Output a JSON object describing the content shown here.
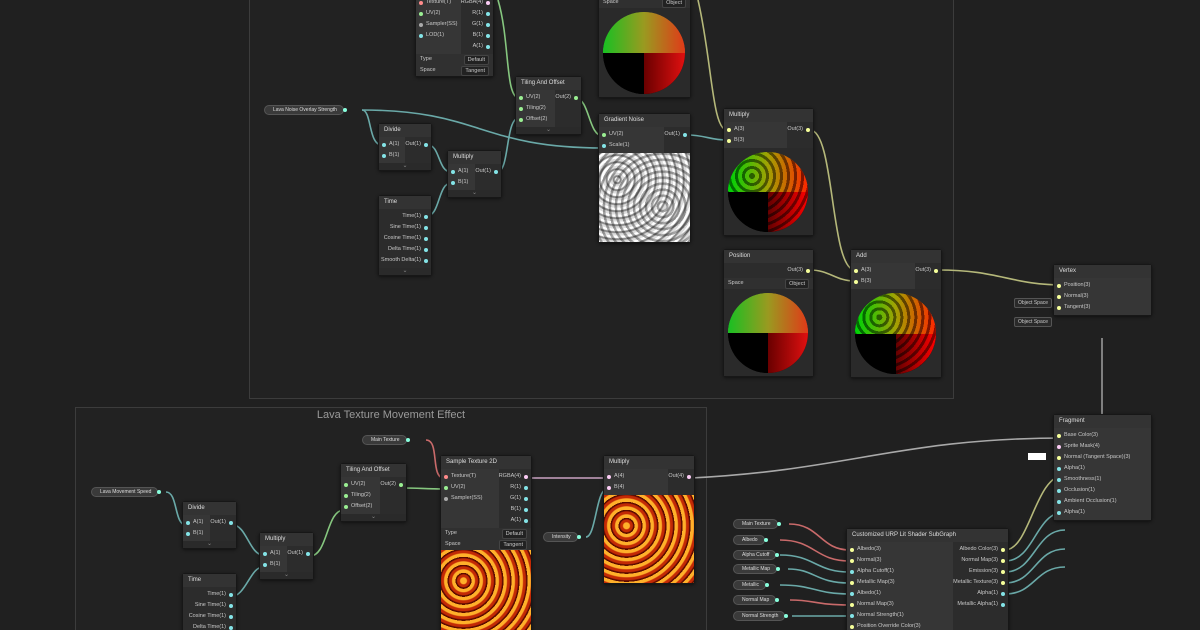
{
  "group_title": "Lava Texture Movement Effect",
  "nodes": [
    {
      "inputs": [
        "Texture(T)",
        "UV(2)",
        "Sampler(SS)",
        "LOD(1)"
      ],
      "outputs": [
        "RGBA(4)",
        "R(1)",
        "G(1)",
        "B(1)",
        "A(1)"
      ],
      "fields": [
        {
          "label": "Type",
          "value": "Default"
        },
        {
          "label": "Space",
          "value": "Tangent"
        }
      ]
    },
    {
      "title": "Tiling And Offset",
      "inputs": [
        "UV(2)",
        "Tiling(2)",
        "Offset(2)"
      ],
      "outputs": [
        "Out(2)"
      ]
    },
    {
      "title": "Divide",
      "inputs": [
        "A(1)",
        "B(1)"
      ],
      "outputs": [
        "Out(1)"
      ]
    },
    {
      "title": "Multiply",
      "inputs": [
        "A(1)",
        "B(1)"
      ],
      "outputs": [
        "Out(1)"
      ]
    },
    {
      "title": "Time",
      "outputs": [
        "Time(1)",
        "Sine Time(1)",
        "Cosine Time(1)",
        "Delta Time(1)",
        "Smooth Delta(1)"
      ]
    },
    {
      "title": "Gradient Noise",
      "inputs": [
        "UV(2)",
        "Scale(1)"
      ],
      "outputs": [
        "Out(1)"
      ]
    },
    {
      "fields": [
        {
          "label": "Space",
          "value": "Object"
        }
      ]
    },
    {
      "title": "Multiply",
      "inputs": [
        "A(3)",
        "B(3)"
      ],
      "outputs": [
        "Out(3)"
      ]
    },
    {
      "title": "Position",
      "outputs": [
        "Out(3)"
      ],
      "fields": [
        {
          "label": "Space",
          "value": "Object"
        }
      ]
    },
    {
      "title": "Add",
      "inputs": [
        "A(3)",
        "B(3)"
      ],
      "outputs": [
        "Out(3)"
      ]
    },
    {
      "title": "Vertex",
      "inputs": [
        "Position(3)",
        "Normal(3)",
        "Tangent(3)"
      ]
    },
    {
      "title": "Fragment",
      "inputs": [
        "Base Color(3)",
        "Sprite Mask(4)",
        "Normal (Tangent Space)(3)",
        "Alpha(1)",
        "Smoothness(1)",
        "Occlusion(1)",
        "Ambient Occlusion(1)",
        "Alpha(1)"
      ]
    },
    {
      "title": "Divide",
      "inputs": [
        "A(1)",
        "B(1)"
      ],
      "outputs": [
        "Out(1)"
      ]
    },
    {
      "title": "Time",
      "outputs": [
        "Time(1)",
        "Sine Time(1)",
        "Cosine Time(1)",
        "Delta Time(1)"
      ]
    },
    {
      "title": "Multiply",
      "inputs": [
        "A(1)",
        "B(1)"
      ],
      "outputs": [
        "Out(1)"
      ]
    },
    {
      "title": "Tiling And Offset",
      "inputs": [
        "UV(2)",
        "Tiling(2)",
        "Offset(2)"
      ],
      "outputs": [
        "Out(2)"
      ]
    },
    {
      "title": "Sample Texture 2D",
      "inputs": [
        "Texture(T)",
        "UV(2)",
        "Sampler(SS)"
      ],
      "outputs": [
        "RGBA(4)",
        "R(1)",
        "G(1)",
        "B(1)",
        "A(1)"
      ],
      "fields": [
        {
          "label": "Type",
          "value": "Default"
        },
        {
          "label": "Space",
          "value": "Tangent"
        }
      ]
    },
    {
      "title": "Multiply",
      "inputs": [
        "A(4)",
        "B(4)"
      ],
      "outputs": [
        "Out(4)"
      ]
    },
    {
      "title": "Customized URP Lit Shader SubGraph",
      "inputs": [
        "Albedo(3)",
        "Normal(3)",
        "Alpha Cutoff(1)",
        "Metallic Map(3)",
        "Albedo(1)",
        "Normal Map(3)",
        "Normal Strength(1)",
        "Position Override Color(3)"
      ],
      "outputs": [
        "Albedo Color(3)",
        "Normal Map(3)",
        "Emission(3)",
        "Metallic Texture(3)",
        "Alpha(1)",
        "Metallic Alpha(1)"
      ]
    }
  ],
  "properties": [
    "Lava Noise Overlay Strength",
    "Lava Movement Speed",
    "Main Texture",
    "Intensity",
    "Main Texture",
    "Albedo",
    "Alpha Cutoff",
    "Metallic Map",
    "Metallic",
    "Normal Map",
    "Normal Strength"
  ],
  "space_fields": [
    "Object Space",
    "Object Space"
  ]
}
